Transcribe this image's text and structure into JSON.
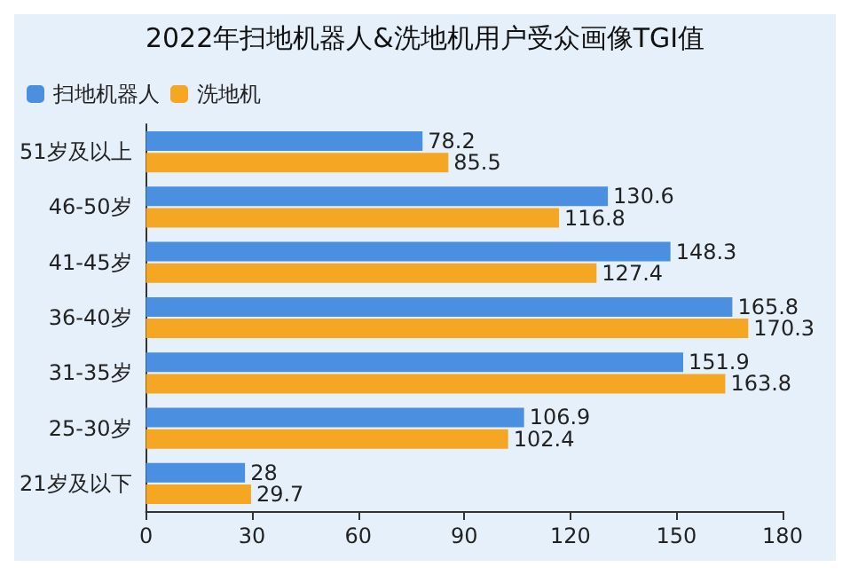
{
  "chart_data": {
    "type": "bar",
    "orientation": "horizontal",
    "title": "2022年扫地机器人&洗地机用户受众画像TGI值",
    "categories": [
      "51岁及以上",
      "46-50岁",
      "41-45岁",
      "36-40岁",
      "31-35岁",
      "25-30岁",
      "21岁及以下"
    ],
    "series": [
      {
        "name": "扫地机器人",
        "color": "#4a8fe0",
        "values": [
          78.2,
          130.6,
          148.3,
          165.8,
          151.9,
          106.9,
          28
        ]
      },
      {
        "name": "洗地机",
        "color": "#f5a623",
        "values": [
          85.5,
          116.8,
          127.4,
          170.3,
          163.8,
          102.4,
          29.7
        ]
      }
    ],
    "xlim": [
      0,
      180
    ],
    "xticks": [
      0,
      30,
      60,
      90,
      120,
      150,
      180
    ],
    "data_labels": true,
    "legend": "top left",
    "grid": false
  }
}
